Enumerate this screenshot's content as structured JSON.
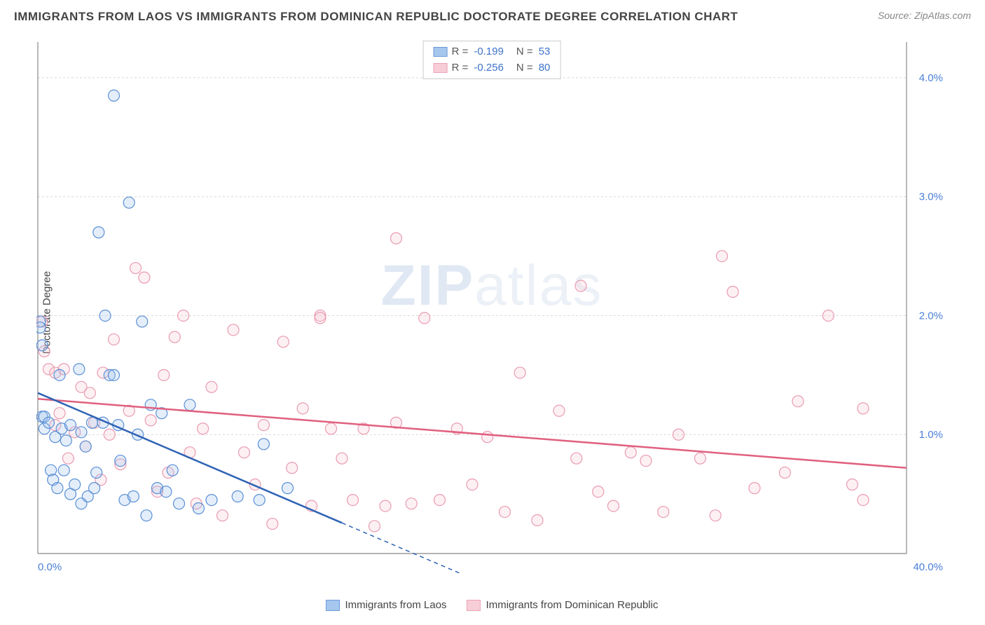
{
  "title": "IMMIGRANTS FROM LAOS VS IMMIGRANTS FROM DOMINICAN REPUBLIC DOCTORATE DEGREE CORRELATION CHART",
  "source_label": "Source: ZipAtlas.com",
  "watermark": {
    "bold": "ZIP",
    "rest": "atlas"
  },
  "ylabel": "Doctorate Degree",
  "chart": {
    "type": "scatter",
    "xlim": [
      0,
      40
    ],
    "ylim": [
      0,
      4.3
    ],
    "xtick_labels": {
      "min": "0.0%",
      "max": "40.0%"
    },
    "ytick_values": [
      1.0,
      2.0,
      3.0,
      4.0
    ],
    "ytick_labels": [
      "1.0%",
      "2.0%",
      "3.0%",
      "4.0%"
    ],
    "grid_color": "#d8d8d8",
    "axis_color": "#888888",
    "background_color": "#ffffff",
    "point_radius": 8,
    "point_stroke_width": 1.2,
    "point_fill_opacity": 0.28,
    "trend_line_width": 2.5,
    "trend_dash": "6 5"
  },
  "series": [
    {
      "key": "laos",
      "label": "Immigrants from Laos",
      "color_stroke": "#5a8fd6",
      "color_fill": "#9dc1ec",
      "line_color": "#2f63b5",
      "R": "-0.199",
      "N": "53",
      "trend": {
        "x1": 0,
        "y1": 1.35,
        "x2": 15.0,
        "y2": 0.18,
        "x_solid_end": 14.0
      },
      "points": [
        [
          0.1,
          1.95
        ],
        [
          0.1,
          1.9
        ],
        [
          0.2,
          1.75
        ],
        [
          0.2,
          1.15
        ],
        [
          0.3,
          1.15
        ],
        [
          0.3,
          1.05
        ],
        [
          0.5,
          1.1
        ],
        [
          0.6,
          0.7
        ],
        [
          0.7,
          0.62
        ],
        [
          0.8,
          0.98
        ],
        [
          0.9,
          0.55
        ],
        [
          1.0,
          1.5
        ],
        [
          1.1,
          1.05
        ],
        [
          1.2,
          0.7
        ],
        [
          1.3,
          0.95
        ],
        [
          1.5,
          0.5
        ],
        [
          1.5,
          1.08
        ],
        [
          1.7,
          0.58
        ],
        [
          1.9,
          1.55
        ],
        [
          2.0,
          0.42
        ],
        [
          2.0,
          1.02
        ],
        [
          2.2,
          0.9
        ],
        [
          2.3,
          0.48
        ],
        [
          2.5,
          1.1
        ],
        [
          2.6,
          0.55
        ],
        [
          2.7,
          0.68
        ],
        [
          2.8,
          2.7
        ],
        [
          3.0,
          1.1
        ],
        [
          3.1,
          2.0
        ],
        [
          3.3,
          1.5
        ],
        [
          3.5,
          1.5
        ],
        [
          3.5,
          3.85
        ],
        [
          3.7,
          1.08
        ],
        [
          3.8,
          0.78
        ],
        [
          4.0,
          0.45
        ],
        [
          4.2,
          2.95
        ],
        [
          4.4,
          0.48
        ],
        [
          4.6,
          1.0
        ],
        [
          4.8,
          1.95
        ],
        [
          5.0,
          0.32
        ],
        [
          5.2,
          1.25
        ],
        [
          5.5,
          0.55
        ],
        [
          5.7,
          1.18
        ],
        [
          5.9,
          0.52
        ],
        [
          6.2,
          0.7
        ],
        [
          6.5,
          0.42
        ],
        [
          7.0,
          1.25
        ],
        [
          7.4,
          0.38
        ],
        [
          8.0,
          0.45
        ],
        [
          9.2,
          0.48
        ],
        [
          10.2,
          0.45
        ],
        [
          10.4,
          0.92
        ],
        [
          11.5,
          0.55
        ]
      ]
    },
    {
      "key": "dr",
      "label": "Immigrants from Dominican Republic",
      "color_stroke": "#e99bb1",
      "color_fill": "#f7c8d4",
      "line_color": "#e0607f",
      "R": "-0.256",
      "N": "80",
      "trend": {
        "x1": 0,
        "y1": 1.3,
        "x2": 40,
        "y2": 0.72,
        "x_solid_end": 40
      },
      "points": [
        [
          0.2,
          1.95
        ],
        [
          0.3,
          1.7
        ],
        [
          0.5,
          1.55
        ],
        [
          0.8,
          1.52
        ],
        [
          0.8,
          1.08
        ],
        [
          1.0,
          1.18
        ],
        [
          1.2,
          1.55
        ],
        [
          1.4,
          0.8
        ],
        [
          1.7,
          1.02
        ],
        [
          2.0,
          1.4
        ],
        [
          2.2,
          0.9
        ],
        [
          2.4,
          1.35
        ],
        [
          2.6,
          1.1
        ],
        [
          2.9,
          0.62
        ],
        [
          3.0,
          1.52
        ],
        [
          3.3,
          1.0
        ],
        [
          3.5,
          1.8
        ],
        [
          3.8,
          0.75
        ],
        [
          4.2,
          1.2
        ],
        [
          4.5,
          2.4
        ],
        [
          4.9,
          2.32
        ],
        [
          5.2,
          1.12
        ],
        [
          5.5,
          0.52
        ],
        [
          5.8,
          1.5
        ],
        [
          6.0,
          0.68
        ],
        [
          6.3,
          1.82
        ],
        [
          6.7,
          2.0
        ],
        [
          7.0,
          0.85
        ],
        [
          7.3,
          0.42
        ],
        [
          7.6,
          1.05
        ],
        [
          8.0,
          1.4
        ],
        [
          8.5,
          0.32
        ],
        [
          9.0,
          1.88
        ],
        [
          9.5,
          0.85
        ],
        [
          10.0,
          0.58
        ],
        [
          10.4,
          1.08
        ],
        [
          10.8,
          0.25
        ],
        [
          11.3,
          1.78
        ],
        [
          11.7,
          0.72
        ],
        [
          12.2,
          1.22
        ],
        [
          12.6,
          0.4
        ],
        [
          13.0,
          2.0
        ],
        [
          13.0,
          1.98
        ],
        [
          13.5,
          1.05
        ],
        [
          14.0,
          0.8
        ],
        [
          14.5,
          0.45
        ],
        [
          15.0,
          1.05
        ],
        [
          15.5,
          0.23
        ],
        [
          16.0,
          0.4
        ],
        [
          16.5,
          1.1
        ],
        [
          16.5,
          2.65
        ],
        [
          17.2,
          0.42
        ],
        [
          17.8,
          1.98
        ],
        [
          18.5,
          0.45
        ],
        [
          19.3,
          1.05
        ],
        [
          20.0,
          0.58
        ],
        [
          20.7,
          0.98
        ],
        [
          21.5,
          0.35
        ],
        [
          22.2,
          1.52
        ],
        [
          23.0,
          0.28
        ],
        [
          24.0,
          1.2
        ],
        [
          24.8,
          0.8
        ],
        [
          25.0,
          2.25
        ],
        [
          25.8,
          0.52
        ],
        [
          26.5,
          0.4
        ],
        [
          27.3,
          0.85
        ],
        [
          28.0,
          0.78
        ],
        [
          28.8,
          0.35
        ],
        [
          29.5,
          1.0
        ],
        [
          30.5,
          0.8
        ],
        [
          31.2,
          0.32
        ],
        [
          31.5,
          2.5
        ],
        [
          32.0,
          2.2
        ],
        [
          33.0,
          0.55
        ],
        [
          34.4,
          0.68
        ],
        [
          35.0,
          1.28
        ],
        [
          36.4,
          2.0
        ],
        [
          37.5,
          0.58
        ],
        [
          38.0,
          1.22
        ],
        [
          38.0,
          0.45
        ]
      ]
    }
  ],
  "stats_box": {
    "R_label": "R  =",
    "N_label": "N  ="
  },
  "bottom_legend": {
    "items": [
      {
        "series": "laos"
      },
      {
        "series": "dr"
      }
    ]
  }
}
